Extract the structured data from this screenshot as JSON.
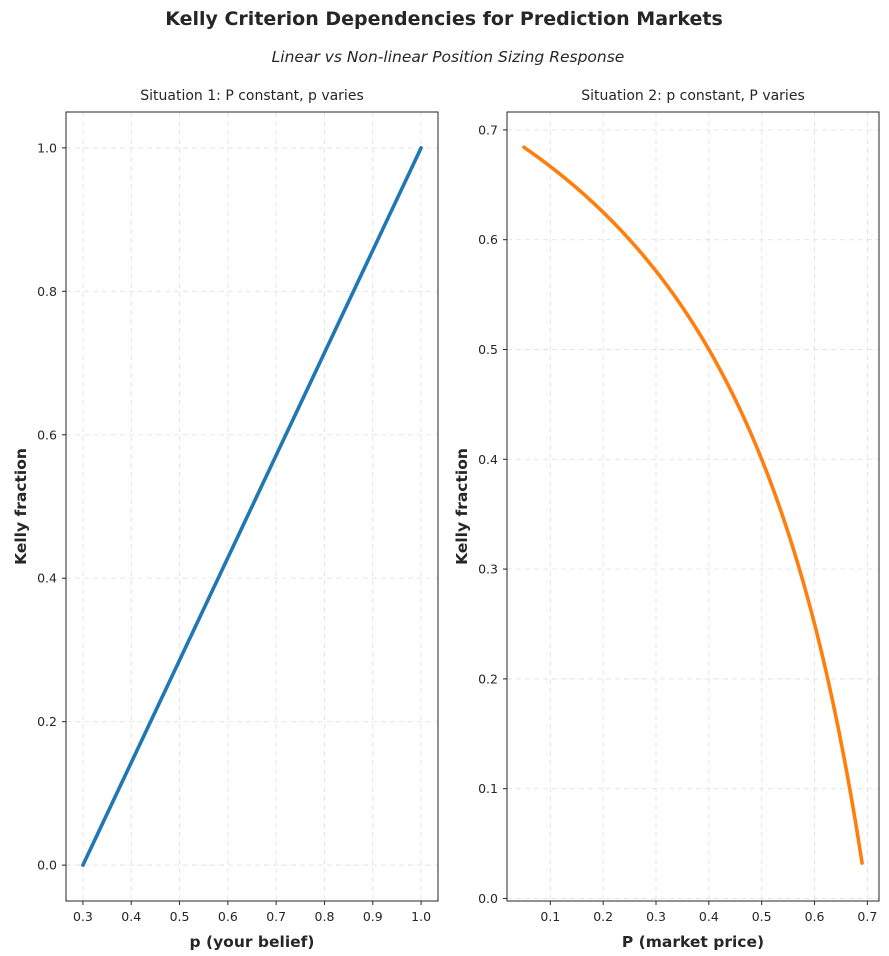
{
  "figure": {
    "title": "Kelly Criterion Dependencies for Prediction Markets",
    "subtitle": "Linear vs Non-linear Position Sizing Response"
  },
  "chart_data": [
    {
      "type": "line",
      "title": "Situation 1: P constant, p varies",
      "xlabel": "p (your belief)",
      "ylabel": "Kelly fraction",
      "xlim": [
        0.265,
        1.035
      ],
      "ylim": [
        -0.05,
        1.05
      ],
      "xticks": [
        0.3,
        0.4,
        0.5,
        0.6,
        0.7,
        0.8,
        0.9,
        1.0
      ],
      "xtick_labels": [
        "0.3",
        "0.4",
        "0.5",
        "0.6",
        "0.7",
        "0.8",
        "0.9",
        "1.0"
      ],
      "yticks": [
        0.0,
        0.2,
        0.4,
        0.6,
        0.8,
        1.0
      ],
      "ytick_labels": [
        "0.0",
        "0.2",
        "0.4",
        "0.6",
        "0.8",
        "1.0"
      ],
      "grid": true,
      "series": [
        {
          "name": "Kelly fraction",
          "color": "#1f77b4",
          "x": [
            0.3,
            0.4,
            0.5,
            0.6,
            0.7,
            0.8,
            0.9,
            1.0
          ],
          "y": [
            0.0,
            0.1429,
            0.2857,
            0.4286,
            0.5714,
            0.7143,
            0.8571,
            1.0
          ]
        }
      ]
    },
    {
      "type": "line",
      "title": "Situation 2: p constant, P varies",
      "xlabel": "P (market price)",
      "ylabel": "Kelly fraction",
      "xlim": [
        0.018,
        0.722
      ],
      "ylim": [
        -0.0023,
        0.7163
      ],
      "xticks": [
        0.1,
        0.2,
        0.3,
        0.4,
        0.5,
        0.6,
        0.7
      ],
      "xtick_labels": [
        "0.1",
        "0.2",
        "0.3",
        "0.4",
        "0.5",
        "0.6",
        "0.7"
      ],
      "yticks": [
        0.0,
        0.1,
        0.2,
        0.3,
        0.4,
        0.5,
        0.6,
        0.7
      ],
      "ytick_labels": [
        "0.0",
        "0.1",
        "0.2",
        "0.3",
        "0.4",
        "0.5",
        "0.6",
        "0.7"
      ],
      "grid": true,
      "series": [
        {
          "name": "Kelly fraction",
          "color": "#ff7f0e",
          "x": [
            0.05,
            0.1,
            0.15,
            0.2,
            0.25,
            0.3,
            0.35,
            0.4,
            0.45,
            0.5,
            0.55,
            0.6,
            0.65,
            0.69
          ],
          "y": [
            0.6842,
            0.6667,
            0.6471,
            0.625,
            0.6,
            0.5714,
            0.5385,
            0.5,
            0.4545,
            0.4,
            0.3333,
            0.25,
            0.1429,
            0.0323
          ]
        }
      ]
    }
  ]
}
